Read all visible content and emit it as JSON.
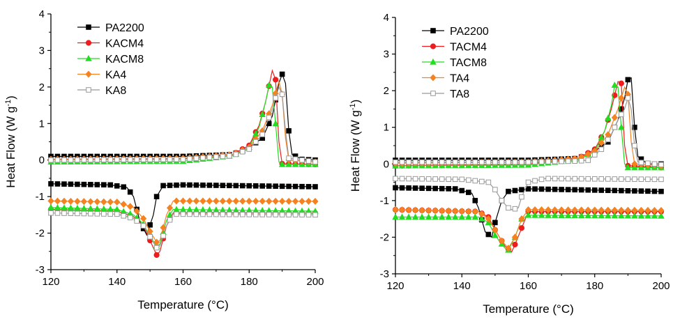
{
  "chart_data": [
    {
      "type": "line",
      "xlabel": "Temperature (°C)",
      "ylabel": "Heat Flow (W g",
      "ylabel_sup": "-1",
      "ylabel_close": ")",
      "xlim": [
        120,
        200
      ],
      "ylim": [
        -3,
        4
      ],
      "xticks": [
        "120",
        "140",
        "160",
        "180",
        "200"
      ],
      "yticks": [
        "-3",
        "-2",
        "-1",
        "0",
        "1",
        "2",
        "3",
        "4"
      ],
      "grid": false,
      "legend_position": "top-left",
      "series": [
        {
          "name": "PA2200",
          "color": "#000000",
          "marker": "square",
          "filled": true,
          "heating": [
            [
              120,
              0.1
            ],
            [
              160,
              0.1
            ],
            [
              175,
              0.15
            ],
            [
              180,
              0.35
            ],
            [
              184,
              0.6
            ],
            [
              187,
              1.2
            ],
            [
              189,
              2.1
            ],
            [
              190,
              2.35
            ],
            [
              191,
              2.1
            ],
            [
              192,
              0.8
            ],
            [
              193,
              0.15
            ],
            [
              196,
              0.02
            ],
            [
              200,
              0.0
            ]
          ],
          "cooling": [
            [
              120,
              -0.65
            ],
            [
              138,
              -0.68
            ],
            [
              143,
              -0.75
            ],
            [
              145,
              -1.0
            ],
            [
              147,
              -1.7
            ],
            [
              149,
              -2.05
            ],
            [
              151,
              -1.5
            ],
            [
              152,
              -1.0
            ],
            [
              154,
              -0.7
            ],
            [
              160,
              -0.68
            ],
            [
              200,
              -0.73
            ]
          ]
        },
        {
          "name": "KACM4",
          "color": "#ee1c1c",
          "marker": "circle",
          "filled": true,
          "heating": [
            [
              120,
              0.02
            ],
            [
              160,
              0.03
            ],
            [
              175,
              0.15
            ],
            [
              180,
              0.4
            ],
            [
              183,
              0.95
            ],
            [
              185,
              1.6
            ],
            [
              187,
              2.45
            ],
            [
              188,
              2.2
            ],
            [
              189,
              0.5
            ],
            [
              190,
              -0.1
            ],
            [
              200,
              -0.12
            ]
          ],
          "cooling": [
            [
              120,
              -1.35
            ],
            [
              140,
              -1.4
            ],
            [
              145,
              -1.55
            ],
            [
              148,
              -1.8
            ],
            [
              150,
              -2.2
            ],
            [
              152,
              -2.6
            ],
            [
              153,
              -2.5
            ],
            [
              155,
              -1.8
            ],
            [
              157,
              -1.45
            ],
            [
              200,
              -1.45
            ]
          ]
        },
        {
          "name": "KACM8",
          "color": "#22dd22",
          "marker": "triangle",
          "filled": true,
          "heating": [
            [
              120,
              -0.05
            ],
            [
              160,
              -0.03
            ],
            [
              175,
              0.12
            ],
            [
              180,
              0.35
            ],
            [
              183,
              0.9
            ],
            [
              185,
              1.6
            ],
            [
              186,
              2.05
            ],
            [
              187,
              2.0
            ],
            [
              188,
              1.0
            ],
            [
              189,
              -0.05
            ],
            [
              190,
              -0.12
            ],
            [
              200,
              -0.12
            ]
          ],
          "cooling": [
            [
              120,
              -1.3
            ],
            [
              140,
              -1.35
            ],
            [
              145,
              -1.5
            ],
            [
              148,
              -1.75
            ],
            [
              150,
              -2.1
            ],
            [
              152,
              -2.35
            ],
            [
              153,
              -2.3
            ],
            [
              155,
              -1.65
            ],
            [
              157,
              -1.35
            ],
            [
              200,
              -1.4
            ]
          ]
        },
        {
          "name": "KA4",
          "color": "#f58220",
          "marker": "diamond",
          "filled": true,
          "heating": [
            [
              120,
              0.02
            ],
            [
              160,
              0.05
            ],
            [
              175,
              0.15
            ],
            [
              180,
              0.35
            ],
            [
              184,
              0.8
            ],
            [
              187,
              1.5
            ],
            [
              189,
              2.15
            ],
            [
              190,
              1.8
            ],
            [
              191,
              0.6
            ],
            [
              192,
              0.0
            ],
            [
              200,
              -0.05
            ]
          ],
          "cooling": [
            [
              120,
              -1.12
            ],
            [
              140,
              -1.15
            ],
            [
              145,
              -1.3
            ],
            [
              148,
              -1.6
            ],
            [
              150,
              -1.95
            ],
            [
              152,
              -2.25
            ],
            [
              153,
              -2.2
            ],
            [
              155,
              -1.5
            ],
            [
              157,
              -1.12
            ],
            [
              200,
              -1.13
            ]
          ]
        },
        {
          "name": "KA8",
          "color": "#999999",
          "marker": "square",
          "filled": false,
          "heating": [
            [
              120,
              0.0
            ],
            [
              160,
              0.02
            ],
            [
              175,
              0.12
            ],
            [
              180,
              0.3
            ],
            [
              184,
              0.7
            ],
            [
              187,
              1.4
            ],
            [
              189,
              2.0
            ],
            [
              190,
              1.8
            ],
            [
              191,
              0.8
            ],
            [
              192,
              0.05
            ],
            [
              200,
              -0.05
            ]
          ],
          "cooling": [
            [
              120,
              -1.45
            ],
            [
              140,
              -1.48
            ],
            [
              145,
              -1.6
            ],
            [
              148,
              -1.8
            ],
            [
              150,
              -2.1
            ],
            [
              152,
              -2.4
            ],
            [
              153,
              -2.35
            ],
            [
              155,
              -1.8
            ],
            [
              157,
              -1.48
            ],
            [
              200,
              -1.5
            ]
          ]
        }
      ]
    },
    {
      "type": "line",
      "xlabel": "Temperature (°C)",
      "ylabel": "Heat Flow (W g",
      "ylabel_sup": "-1",
      "ylabel_close": ")",
      "xlim": [
        120,
        200
      ],
      "ylim": [
        -3,
        4
      ],
      "xticks": [
        "120",
        "140",
        "160",
        "180",
        "200"
      ],
      "yticks": [
        "-3",
        "-2",
        "-1",
        "0",
        "1",
        "2",
        "3",
        "4"
      ],
      "grid": false,
      "legend_position": "top-left",
      "series": [
        {
          "name": "PA2200",
          "color": "#000000",
          "marker": "square",
          "filled": true,
          "heating": [
            [
              120,
              0.1
            ],
            [
              160,
              0.1
            ],
            [
              175,
              0.15
            ],
            [
              180,
              0.35
            ],
            [
              184,
              0.6
            ],
            [
              187,
              1.2
            ],
            [
              189,
              1.8
            ],
            [
              190,
              2.3
            ],
            [
              191,
              2.35
            ],
            [
              192,
              1.0
            ],
            [
              193,
              0.2
            ],
            [
              196,
              0.0
            ],
            [
              200,
              0.0
            ]
          ],
          "cooling": [
            [
              120,
              -0.65
            ],
            [
              138,
              -0.68
            ],
            [
              143,
              -0.8
            ],
            [
              145,
              -1.2
            ],
            [
              147,
              -1.85
            ],
            [
              149,
              -2.0
            ],
            [
              150,
              -1.6
            ],
            [
              152,
              -1.0
            ],
            [
              154,
              -0.75
            ],
            [
              160,
              -0.68
            ],
            [
              200,
              -0.75
            ]
          ]
        },
        {
          "name": "TACM4",
          "color": "#ee1c1c",
          "marker": "circle",
          "filled": true,
          "heating": [
            [
              120,
              -0.05
            ],
            [
              160,
              0.0
            ],
            [
              175,
              0.15
            ],
            [
              180,
              0.4
            ],
            [
              183,
              0.9
            ],
            [
              185,
              1.5
            ],
            [
              187,
              2.25
            ],
            [
              188,
              2.2
            ],
            [
              189,
              0.5
            ],
            [
              190,
              -0.05
            ],
            [
              200,
              -0.1
            ]
          ],
          "cooling": [
            [
              120,
              -1.25
            ],
            [
              145,
              -1.3
            ],
            [
              148,
              -1.45
            ],
            [
              150,
              -1.8
            ],
            [
              153,
              -2.25
            ],
            [
              155,
              -2.4
            ],
            [
              156,
              -2.2
            ],
            [
              158,
              -1.75
            ],
            [
              160,
              -1.3
            ],
            [
              200,
              -1.3
            ]
          ]
        },
        {
          "name": "TACM8",
          "color": "#22dd22",
          "marker": "triangle",
          "filled": true,
          "heating": [
            [
              120,
              -0.05
            ],
            [
              160,
              -0.03
            ],
            [
              175,
              0.12
            ],
            [
              180,
              0.35
            ],
            [
              183,
              0.9
            ],
            [
              185,
              1.6
            ],
            [
              186,
              2.15
            ],
            [
              187,
              2.1
            ],
            [
              188,
              1.0
            ],
            [
              189,
              0.0
            ],
            [
              190,
              -0.1
            ],
            [
              200,
              -0.1
            ]
          ],
          "cooling": [
            [
              120,
              -1.45
            ],
            [
              145,
              -1.45
            ],
            [
              148,
              -1.6
            ],
            [
              150,
              -1.95
            ],
            [
              153,
              -2.3
            ],
            [
              154,
              -2.35
            ],
            [
              156,
              -2.0
            ],
            [
              158,
              -1.5
            ],
            [
              160,
              -1.4
            ],
            [
              200,
              -1.42
            ]
          ]
        },
        {
          "name": "TA4",
          "color": "#f58220",
          "marker": "diamond",
          "filled": true,
          "heating": [
            [
              120,
              0.02
            ],
            [
              160,
              0.05
            ],
            [
              175,
              0.15
            ],
            [
              180,
              0.35
            ],
            [
              184,
              0.8
            ],
            [
              187,
              1.5
            ],
            [
              189,
              2.1
            ],
            [
              190,
              1.9
            ],
            [
              191,
              0.6
            ],
            [
              192,
              0.0
            ],
            [
              200,
              -0.05
            ]
          ],
          "cooling": [
            [
              120,
              -1.25
            ],
            [
              145,
              -1.3
            ],
            [
              148,
              -1.5
            ],
            [
              150,
              -1.8
            ],
            [
              152,
              -2.1
            ],
            [
              154,
              -2.3
            ],
            [
              156,
              -2.0
            ],
            [
              158,
              -1.5
            ],
            [
              160,
              -1.25
            ],
            [
              200,
              -1.27
            ]
          ]
        },
        {
          "name": "TA8",
          "color": "#999999",
          "marker": "square",
          "filled": false,
          "heating": [
            [
              120,
              0.05
            ],
            [
              160,
              0.05
            ],
            [
              175,
              0.08
            ],
            [
              178,
              0.1
            ],
            [
              182,
              0.4
            ],
            [
              185,
              0.8
            ],
            [
              187,
              1.2
            ],
            [
              189,
              1.5
            ],
            [
              190,
              1.8
            ],
            [
              191,
              1.5
            ],
            [
              192,
              0.5
            ],
            [
              193,
              0.05
            ],
            [
              200,
              -0.02
            ]
          ],
          "cooling": [
            [
              120,
              -0.4
            ],
            [
              140,
              -0.42
            ],
            [
              148,
              -0.5
            ],
            [
              150,
              -0.7
            ],
            [
              152,
              -1.0
            ],
            [
              154,
              -1.2
            ],
            [
              155,
              -1.25
            ],
            [
              157,
              -1.2
            ],
            [
              158,
              -0.9
            ],
            [
              160,
              -0.5
            ],
            [
              165,
              -0.4
            ],
            [
              200,
              -0.42
            ]
          ]
        }
      ]
    }
  ]
}
